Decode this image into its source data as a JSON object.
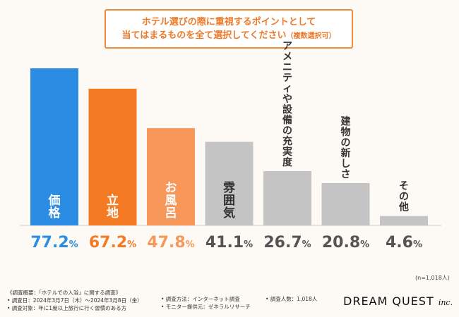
{
  "title": {
    "line1": "ホテル選びの際に重視するポイントとして",
    "line2": "当てはまるものを全て選択してください",
    "note": "（複数選択可）"
  },
  "chart_data": {
    "type": "bar",
    "categories": [
      "価格",
      "立地",
      "お風呂",
      "雰囲気",
      "アメニティや設備の充実度",
      "建物の新しさ",
      "その他"
    ],
    "values": [
      77.2,
      67.2,
      47.8,
      41.1,
      26.7,
      20.8,
      4.6
    ],
    "value_labels": [
      {
        "int": "77.2",
        "unit": "%"
      },
      {
        "int": "67.2",
        "unit": "%"
      },
      {
        "int": "47.8",
        "unit": "%"
      },
      {
        "int": "41.1",
        "unit": "%"
      },
      {
        "int": "26.7",
        "unit": "%"
      },
      {
        "int": "20.8",
        "unit": "%"
      },
      {
        "int": "4.6",
        "unit": "%"
      }
    ],
    "colors": [
      "#2a8de3",
      "#f47b24",
      "#f7985a",
      "#c4c4c4",
      "#c4c4c4",
      "#c4c4c4",
      "#c4c4c4"
    ],
    "label_colors": [
      "#2a8de3",
      "#f47b24",
      "#f7985a",
      "#555555",
      "#555555",
      "#555555",
      "#555555"
    ],
    "ylim": [
      0,
      80
    ],
    "sample_note": "(n=1,018人)"
  },
  "footer": {
    "heading": "《調査概要：「ホテルでの入浴」に関する調査》",
    "date": "• 調査日：2024年3月7日（木）～2024年3月8日（金）",
    "target": "• 調査対象：年に1度以上旅行に行く習慣のある方",
    "method": "• 調査方法：インターネット調査",
    "provider": "• モニター提供元：ゼネラルリサーチ",
    "count": "• 調査人数：1,018人"
  },
  "logo": {
    "main": "DREAM QUEST",
    "suffix": "inc."
  }
}
